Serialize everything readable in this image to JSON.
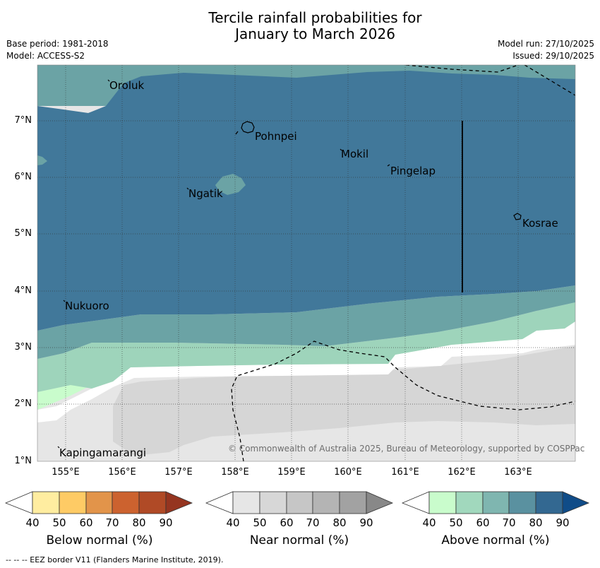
{
  "title_line1": "Tercile rainfall probabilities for",
  "title_line2": "January to March 2026",
  "base_period": "Base period: 1981-2018",
  "model": "Model: ACCESS-S2",
  "model_run": "Model run: 27/10/2025",
  "issued": "Issued: 29/10/2025",
  "lat_ticks": [
    "7°N",
    "6°N",
    "5°N",
    "4°N",
    "3°N",
    "2°N",
    "1°N"
  ],
  "lon_ticks": [
    "155°E",
    "156°E",
    "157°E",
    "158°E",
    "159°E",
    "160°E",
    "161°E",
    "162°E",
    "163°E"
  ],
  "places": {
    "oroluk": "Oroluk",
    "pohnpei": "Pohnpei",
    "mokil": "Mokil",
    "pingelap": "Pingelap",
    "ngatik": "Ngatik",
    "kosrae": "Kosrae",
    "nukuoro": "Nukuoro",
    "kapingamarangi": "Kapingamarangi"
  },
  "copyright": "© Commonwealth of Australia 2025, Bureau of Meteorology, supported by COSPPac",
  "colorbars": {
    "ticks": [
      "40",
      "50",
      "60",
      "70",
      "80",
      "90"
    ],
    "below": {
      "label": "Below normal (%)",
      "colors": [
        "#ffeda0",
        "#fecb65",
        "#e2944a",
        "#cc622f",
        "#b04a26",
        "#953520"
      ]
    },
    "near": {
      "label": "Near normal (%)",
      "colors": [
        "#e6e6e6",
        "#d7d7d7",
        "#c6c6c6",
        "#b4b4b4",
        "#a2a2a2",
        "#888888"
      ]
    },
    "above": {
      "label": "Above normal (%)",
      "colors": [
        "#c9fccc",
        "#a1d8bd",
        "#7fb6b0",
        "#5a91a0",
        "#336891",
        "#104c88"
      ]
    }
  },
  "footer": "--  --  -- EEZ border V11 (Flanders Marine Institute, 2019).",
  "colors": {
    "above_60": "#6ba3a5",
    "above_70": "#41789a",
    "above_50": "#9ed4bb",
    "above_40": "#c9fccc",
    "near_40": "#e6e6e6",
    "near_50": "#d6d6d6"
  }
}
